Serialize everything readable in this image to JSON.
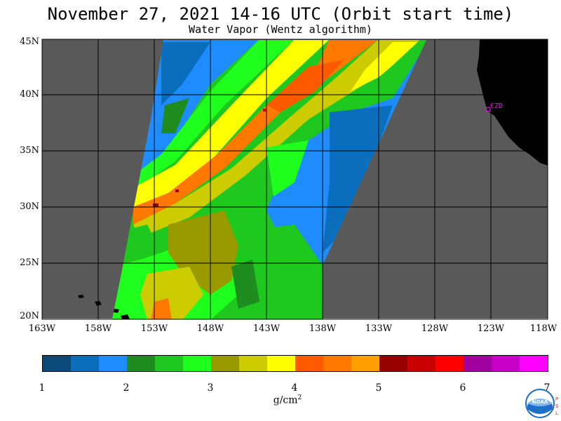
{
  "header": {
    "title": "November 27, 2021  14-16 UTC  (Orbit start time)",
    "subtitle": "Water Vapor (Wentz algorithm)"
  },
  "map": {
    "lat_labels": [
      "45N",
      "40N",
      "35N",
      "30N",
      "25N",
      "20N"
    ],
    "lon_labels": [
      "163W",
      "158W",
      "153W",
      "148W",
      "143W",
      "138W",
      "133W",
      "128W",
      "123W",
      "118W"
    ],
    "station_label": "CZD",
    "colors": {
      "no_data": "#595959",
      "land": "#000000",
      "grid": "#000000",
      "station": "#ff00ff"
    }
  },
  "colorbar": {
    "tick_labels": [
      "1",
      "2",
      "3",
      "4",
      "5",
      "6",
      "7"
    ],
    "unit": "g/cm",
    "unit_sup": "2",
    "colors": [
      "#0a4a7a",
      "#0a6ebd",
      "#1e8cff",
      "#1e8c1e",
      "#1ec81e",
      "#1eff1e",
      "#999900",
      "#cccc00",
      "#ffff00",
      "#ff5a00",
      "#ff7800",
      "#ffa000",
      "#960000",
      "#c80000",
      "#ff0000",
      "#a000a0",
      "#c800c8",
      "#ff00ff"
    ]
  },
  "logos": {
    "noaa_text": "NOAA",
    "psl_text": "PSL"
  }
}
